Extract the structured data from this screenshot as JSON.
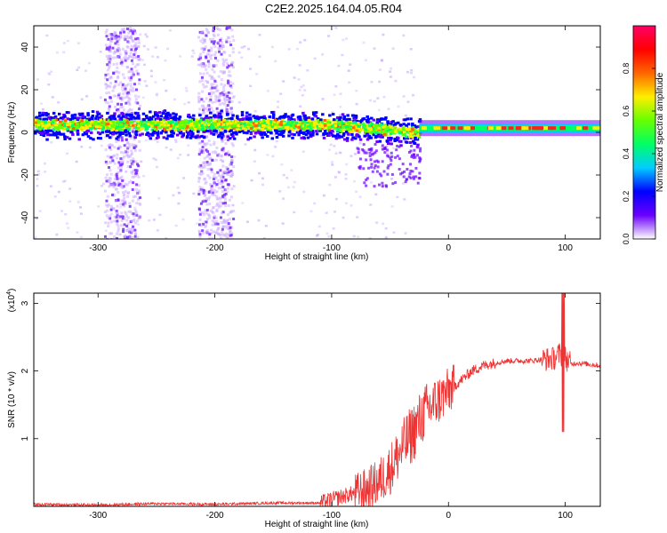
{
  "figure_title": "C2E2.2025.164.04.05.R04",
  "colors": {
    "snr_line": "#ee3333",
    "background": "#ffffff",
    "axis": "#000000"
  },
  "chart_data": [
    {
      "type": "heatmap",
      "title": "",
      "xlabel": "Height of straight line (km)",
      "ylabel": "Frequency (Hz)",
      "xlim": [
        -355,
        130
      ],
      "ylim": [
        -50,
        50
      ],
      "xticks": [
        -300,
        -200,
        -100,
        0,
        100
      ],
      "yticks": [
        -40,
        -20,
        0,
        20,
        40
      ],
      "xtick_labels": [
        "-300",
        "-200",
        "-100",
        "0",
        "100"
      ],
      "ytick_labels": [
        "-40",
        "-20",
        "0",
        "20",
        "40"
      ],
      "colorbar": {
        "label": "Normalized spectral amplitude",
        "range": [
          0,
          1
        ],
        "ticks": [
          "0.0",
          "0.2",
          "0.4",
          "0.6",
          "0.8"
        ],
        "colormap": [
          "#ffffff",
          "#6a00ff",
          "#0000ff",
          "#00ccff",
          "#00ff66",
          "#66ff00",
          "#ffee00",
          "#ff6600",
          "#ff0000",
          "#ff0066"
        ]
      },
      "features": [
        {
          "description": "dominant band",
          "x_range": [
            -355,
            130
          ],
          "freq_center_left": 4,
          "freq_center_right": 2,
          "amplitude": 0.5
        },
        {
          "description": "vertical spread column",
          "x_range": [
            -295,
            -265
          ],
          "amplitude": 0.15
        },
        {
          "description": "vertical spread column",
          "x_range": [
            -215,
            -185
          ],
          "amplitude": 0.15
        },
        {
          "description": "strong narrow line",
          "x_range": [
            -25,
            130
          ],
          "freq": 2,
          "amplitude": 0.9
        }
      ]
    },
    {
      "type": "line",
      "title": "",
      "xlabel": "Height of straight line (km)",
      "ylabel": "SNR (10 * v/v)",
      "y_multiplier": "(x10",
      "y_multiplier_exp": "4",
      "y_multiplier_close": ")",
      "xlim": [
        -355,
        130
      ],
      "ylim": [
        0,
        3.15
      ],
      "xticks": [
        -300,
        -200,
        -100,
        0,
        100
      ],
      "yticks": [
        1,
        2,
        3
      ],
      "xtick_labels": [
        "-300",
        "-200",
        "-100",
        "0",
        "100"
      ],
      "ytick_labels": [
        "1",
        "2",
        "3"
      ],
      "series": [
        {
          "x": [
            -355,
            -300,
            -250,
            -200,
            -150,
            -110,
            -90,
            -70,
            -60,
            -50,
            -40,
            -30,
            -20,
            -10,
            0,
            10,
            20,
            30,
            40,
            50,
            60,
            70,
            80,
            90,
            95,
            100,
            105,
            110,
            120,
            130
          ],
          "y": [
            0.03,
            0.02,
            0.04,
            0.03,
            0.05,
            0.05,
            0.15,
            0.25,
            0.35,
            0.55,
            0.85,
            1.1,
            1.4,
            1.55,
            1.7,
            1.85,
            2.0,
            2.08,
            2.12,
            2.15,
            2.15,
            2.15,
            2.17,
            2.18,
            2.25,
            2.2,
            2.1,
            2.12,
            2.1,
            2.08
          ]
        }
      ]
    }
  ]
}
